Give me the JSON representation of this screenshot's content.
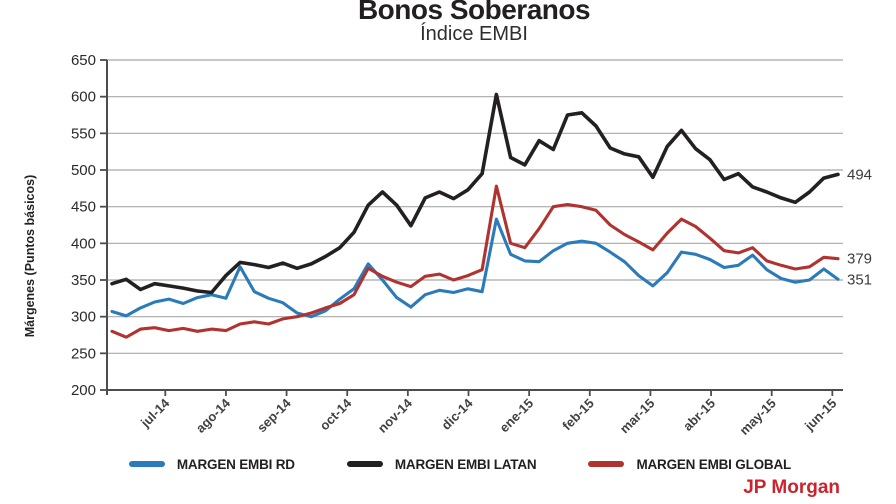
{
  "chart": {
    "title": "Bonos Soberanos",
    "subtitle": "Índice EMBI",
    "ylabel": "Márgenes (Puntos básicos)",
    "source": "JP Morgan"
  },
  "colors": {
    "blue": "#2b7bbb",
    "black": "#241f20",
    "red": "#b13330",
    "grid": "#a8a8a8",
    "axis": "#4d4d4f",
    "tick_text": "#2a2a2a",
    "xtick_text": "#414042",
    "end_label_text": "#3d3d3f",
    "source_red": "#cb242c"
  },
  "chart_data": {
    "type": "line",
    "title": "Bonos Soberanos",
    "subtitle": "Índice EMBI",
    "xlabel": "",
    "ylabel": "Márgenes (Puntos básicos)",
    "ylim": [
      200,
      650
    ],
    "yticks": [
      650,
      600,
      550,
      500,
      450,
      400,
      350,
      300,
      250,
      200
    ],
    "grid": true,
    "legend_position": "bottom",
    "source": "JP Morgan",
    "x_tick_labels": [
      "jul-14",
      "ago-14",
      "sep-14",
      "oct-14",
      "nov-14",
      "dic-14",
      "ene-15",
      "feb-15",
      "mar-15",
      "abr-15",
      "may-15",
      "jun-15"
    ],
    "x_unit": "weekly samples, mid-jun-2014 to mid-jun-2015",
    "series": [
      {
        "name": "MARGEN EMBI RD",
        "color": "#2b7bbb",
        "end_label": "351",
        "values": [
          307,
          301,
          312,
          320,
          324,
          318,
          326,
          330,
          325,
          368,
          334,
          325,
          319,
          305,
          300,
          308,
          324,
          338,
          372,
          350,
          326,
          313,
          330,
          336,
          333,
          338,
          334,
          433,
          385,
          376,
          375,
          390,
          400,
          403,
          400,
          388,
          375,
          356,
          342,
          360,
          388,
          385,
          378,
          367,
          370,
          384,
          364,
          352,
          347,
          350,
          365,
          351
        ]
      },
      {
        "name": "MARGEN EMBI LATAN",
        "color": "#241f20",
        "end_label": "494",
        "values": [
          345,
          351,
          337,
          345,
          342,
          339,
          335,
          333,
          356,
          374,
          371,
          367,
          373,
          366,
          372,
          382,
          394,
          415,
          452,
          470,
          452,
          424,
          462,
          470,
          461,
          473,
          495,
          603,
          517,
          507,
          540,
          528,
          575,
          578,
          560,
          530,
          522,
          518,
          490,
          532,
          554,
          529,
          514,
          487,
          495,
          477,
          470,
          462,
          456,
          470,
          489,
          494
        ]
      },
      {
        "name": "MARGEN EMBI GLOBAL",
        "color": "#b13330",
        "end_label": "379",
        "values": [
          280,
          272,
          283,
          285,
          281,
          284,
          280,
          283,
          281,
          290,
          293,
          290,
          297,
          300,
          305,
          312,
          318,
          330,
          366,
          355,
          347,
          341,
          355,
          358,
          350,
          356,
          364,
          478,
          400,
          394,
          420,
          450,
          453,
          450,
          445,
          425,
          412,
          402,
          391,
          414,
          433,
          423,
          407,
          390,
          387,
          394,
          376,
          370,
          365,
          368,
          381,
          379
        ]
      }
    ]
  }
}
